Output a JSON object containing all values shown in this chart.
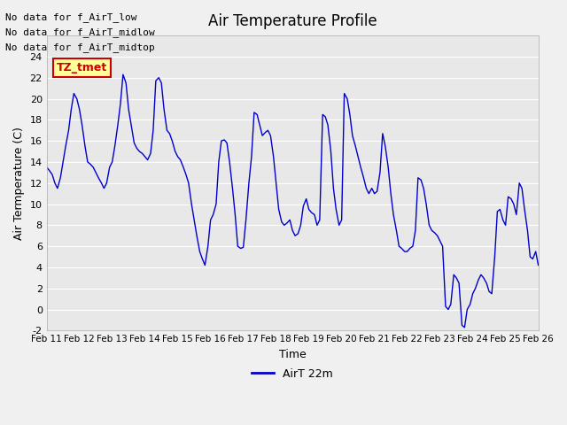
{
  "title": "Air Temperature Profile",
  "xlabel": "Time",
  "ylabel": "Air Termperature (C)",
  "legend_label": "AirT 22m",
  "line_color": "#0000cc",
  "background_color": "#e8e8e8",
  "plot_bg_color": "#e8e8e8",
  "ylim": [
    -2,
    26
  ],
  "yticks": [
    -2,
    0,
    2,
    4,
    6,
    8,
    10,
    12,
    14,
    16,
    18,
    20,
    22,
    24
  ],
  "annotation_lines": [
    "No data for f_AirT_low",
    "No data for f_AirT_midlow",
    "No data for f_AirT_midtop"
  ],
  "legend_box_color": "#cc0000",
  "legend_text_color": "#cc0000",
  "legend_bg": "#ffff99",
  "x_start": 11.0,
  "x_end": 26.0,
  "xtick_positions": [
    11,
    12,
    13,
    14,
    15,
    16,
    17,
    18,
    19,
    20,
    21,
    22,
    23,
    24,
    25,
    26
  ],
  "xtick_labels": [
    "Feb 11",
    "Feb 12",
    "Feb 13",
    "Feb 14",
    "Feb 15",
    "Feb 16",
    "Feb 17",
    "Feb 18",
    "Feb 19",
    "Feb 20",
    "Feb 21",
    "Feb 22",
    "Feb 23",
    "Feb 24",
    "Feb 25",
    "Feb 26"
  ],
  "t": [
    11.0,
    11.08,
    11.17,
    11.25,
    11.33,
    11.42,
    11.5,
    11.58,
    11.67,
    11.75,
    11.83,
    11.92,
    12.0,
    12.08,
    12.17,
    12.25,
    12.33,
    12.42,
    12.5,
    12.58,
    12.67,
    12.75,
    12.83,
    12.92,
    13.0,
    13.08,
    13.17,
    13.25,
    13.33,
    13.42,
    13.5,
    13.58,
    13.67,
    13.75,
    13.83,
    13.92,
    14.0,
    14.08,
    14.17,
    14.25,
    14.33,
    14.42,
    14.5,
    14.58,
    14.67,
    14.75,
    14.83,
    14.92,
    15.0,
    15.08,
    15.17,
    15.25,
    15.33,
    15.42,
    15.5,
    15.58,
    15.67,
    15.75,
    15.83,
    15.92,
    16.0,
    16.08,
    16.17,
    16.25,
    16.33,
    16.42,
    16.5,
    16.58,
    16.67,
    16.75,
    16.83,
    16.92,
    17.0,
    17.08,
    17.17,
    17.25,
    17.33,
    17.42,
    17.5,
    17.58,
    17.67,
    17.75,
    17.83,
    17.92,
    18.0,
    18.08,
    18.17,
    18.25,
    18.33,
    18.42,
    18.5,
    18.58,
    18.67,
    18.75,
    18.83,
    18.92,
    19.0,
    19.08,
    19.17,
    19.25,
    19.33,
    19.42,
    19.5,
    19.58,
    19.67,
    19.75,
    19.83,
    19.92,
    20.0,
    20.08,
    20.17,
    20.25,
    20.33,
    20.42,
    20.5,
    20.58,
    20.67,
    20.75,
    20.83,
    20.92,
    21.0,
    21.08,
    21.17,
    21.25,
    21.33,
    21.42,
    21.5,
    21.58,
    21.67,
    21.75,
    21.83,
    21.92,
    22.0,
    22.08,
    22.17,
    22.25,
    22.33,
    22.42,
    22.5,
    22.58,
    22.67,
    22.75,
    22.83,
    22.92,
    23.0,
    23.08,
    23.17,
    23.25,
    23.33,
    23.42,
    23.5,
    23.58,
    23.67,
    23.75,
    23.83,
    23.92,
    24.0,
    24.08,
    24.17,
    24.25,
    24.33,
    24.42,
    24.5,
    24.58,
    24.67,
    24.75,
    24.83,
    24.92,
    25.0,
    25.08,
    25.17,
    25.25,
    25.33,
    25.42,
    25.5,
    25.58,
    25.67,
    25.75,
    25.83,
    25.92,
    26.0
  ],
  "temp": [
    13.5,
    13.2,
    12.8,
    12.0,
    11.5,
    12.5,
    14.0,
    15.5,
    17.0,
    19.0,
    20.5,
    20.0,
    19.0,
    17.5,
    15.5,
    14.0,
    13.8,
    13.5,
    13.0,
    12.5,
    12.0,
    11.5,
    12.0,
    13.5,
    14.0,
    15.5,
    17.5,
    19.5,
    22.3,
    21.5,
    19.0,
    17.5,
    15.8,
    15.3,
    15.0,
    14.8,
    14.5,
    14.2,
    14.8,
    17.0,
    21.7,
    22.0,
    21.5,
    19.0,
    17.0,
    16.7,
    16.0,
    15.0,
    14.5,
    14.2,
    13.5,
    12.8,
    12.0,
    10.0,
    8.5,
    7.0,
    5.5,
    4.8,
    4.2,
    6.0,
    8.5,
    9.0,
    10.0,
    14.0,
    16.0,
    16.1,
    15.8,
    14.0,
    11.5,
    9.0,
    6.0,
    5.8,
    5.9,
    8.5,
    12.0,
    14.5,
    18.7,
    18.5,
    17.5,
    16.5,
    16.8,
    17.0,
    16.5,
    14.5,
    12.0,
    9.5,
    8.3,
    8.0,
    8.2,
    8.5,
    7.5,
    7.0,
    7.2,
    8.0,
    9.8,
    10.5,
    9.5,
    9.2,
    9.0,
    8.0,
    8.5,
    18.5,
    18.3,
    17.5,
    15.0,
    11.5,
    9.5,
    8.0,
    8.5,
    20.5,
    20.0,
    18.5,
    16.5,
    15.5,
    14.5,
    13.5,
    12.5,
    11.5,
    11.0,
    11.5,
    11.0,
    11.2,
    13.0,
    16.7,
    15.5,
    13.5,
    11.0,
    9.0,
    7.5,
    6.0,
    5.8,
    5.5,
    5.5,
    5.8,
    6.0,
    7.5,
    12.5,
    12.3,
    11.5,
    10.0,
    8.0,
    7.5,
    7.3,
    7.0,
    6.5,
    6.0,
    0.3,
    0.0,
    0.5,
    3.3,
    3.0,
    2.5,
    -1.5,
    -1.7,
    0.0,
    0.5,
    1.5,
    2.0,
    2.8,
    3.3,
    3.0,
    2.5,
    1.7,
    1.5,
    5.0,
    9.3,
    9.5,
    8.5,
    8.0,
    10.7,
    10.5,
    10.0,
    9.0,
    12.0,
    11.5,
    9.5,
    7.5,
    5.0,
    4.8,
    5.5,
    4.2
  ]
}
